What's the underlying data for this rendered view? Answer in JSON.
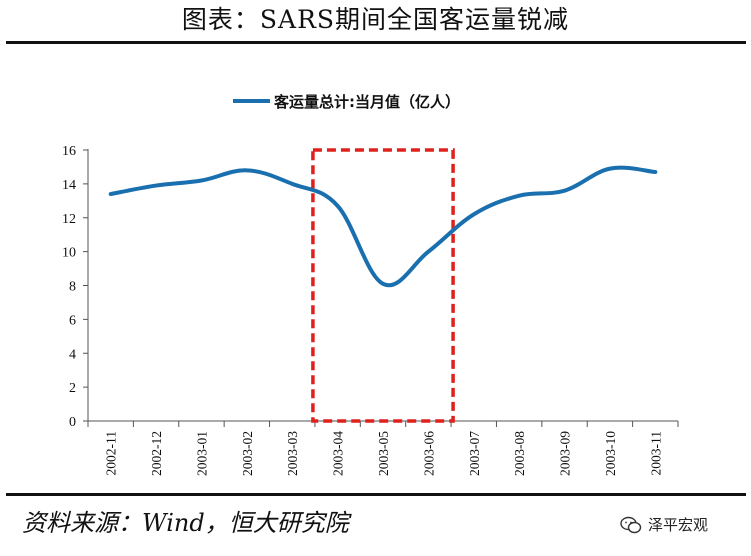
{
  "header": {
    "title": "图表：SARS期间全国客运量锐减"
  },
  "chart_data": {
    "type": "line",
    "legend": {
      "label": "客运量总计:当月值（亿人）",
      "position": "top-center"
    },
    "categories": [
      "2002-11",
      "2002-12",
      "2003-01",
      "2003-02",
      "2003-03",
      "2003-04",
      "2003-05",
      "2003-06",
      "2003-07",
      "2003-08",
      "2003-09",
      "2003-10",
      "2003-11"
    ],
    "series": [
      {
        "name": "客运量总计:当月值（亿人）",
        "values": [
          13.4,
          13.9,
          14.2,
          14.8,
          14.0,
          12.7,
          8.1,
          10.0,
          12.2,
          13.3,
          13.6,
          14.9,
          14.7
        ],
        "color": "#1a6faf"
      }
    ],
    "ylim": [
      0,
      16
    ],
    "yticks": [
      0,
      2,
      4,
      6,
      8,
      10,
      12,
      14,
      16
    ],
    "grid": false,
    "highlight": {
      "from": "2003-04",
      "to": "2003-06",
      "color": "#e0201b",
      "style": "dashed"
    }
  },
  "footer": {
    "source": "资料来源：Wind，恒大研究院",
    "brand": "泽平宏观"
  }
}
